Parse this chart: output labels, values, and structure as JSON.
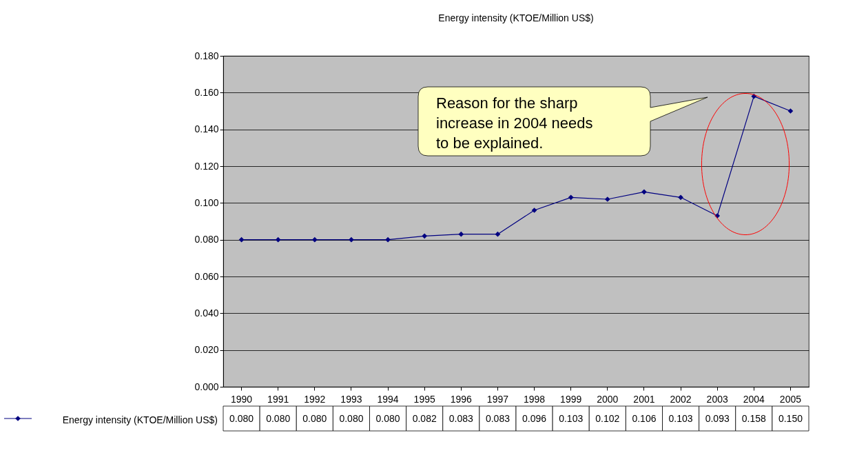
{
  "chart_data": {
    "type": "line",
    "title": "Energy intensity (KTOE/Million US$)",
    "categories": [
      "1990",
      "1991",
      "1992",
      "1993",
      "1994",
      "1995",
      "1996",
      "1997",
      "1998",
      "1999",
      "2000",
      "2001",
      "2002",
      "2003",
      "2004",
      "2005"
    ],
    "series": [
      {
        "name": "Energy intensity (KTOE/Million US$)",
        "color": "#000080",
        "values": [
          0.08,
          0.08,
          0.08,
          0.08,
          0.08,
          0.082,
          0.083,
          0.083,
          0.096,
          0.103,
          0.102,
          0.106,
          0.103,
          0.093,
          0.158,
          0.15
        ]
      }
    ],
    "value_labels": [
      "0.080",
      "0.080",
      "0.080",
      "0.080",
      "0.080",
      "0.082",
      "0.083",
      "0.083",
      "0.096",
      "0.103",
      "0.102",
      "0.106",
      "0.103",
      "0.093",
      "0.158",
      "0.150"
    ],
    "ylim": [
      0,
      0.18
    ],
    "yticks": [
      {
        "value": 0,
        "label": "0.000"
      },
      {
        "value": 0.02,
        "label": "0.020"
      },
      {
        "value": 0.04,
        "label": "0.040"
      },
      {
        "value": 0.06,
        "label": "0.060"
      },
      {
        "value": 0.08,
        "label": "0.080"
      },
      {
        "value": 0.1,
        "label": "0.100"
      },
      {
        "value": 0.12,
        "label": "0.120"
      },
      {
        "value": 0.14,
        "label": "0.140"
      },
      {
        "value": 0.16,
        "label": "0.160"
      },
      {
        "value": 0.18,
        "label": "0.180"
      }
    ],
    "grid": "y",
    "marker": "diamond",
    "line_style": "solid",
    "legend": "bottom",
    "annotations": [
      "Reason for the sharp increase in 2004 needs to be explained."
    ]
  }
}
